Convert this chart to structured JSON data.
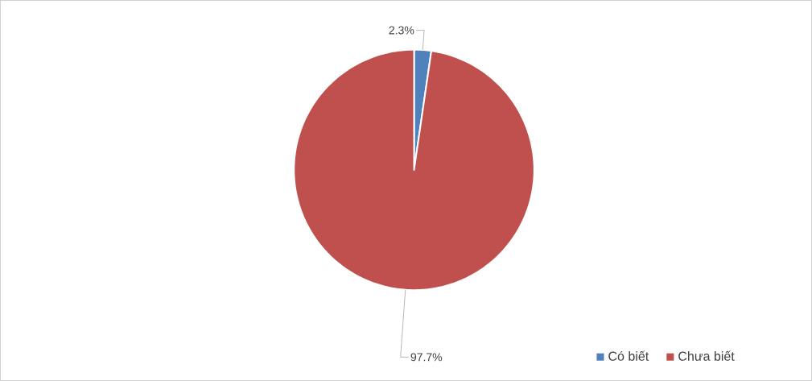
{
  "chart_data": {
    "type": "pie",
    "categories": [
      "Có biết",
      "Chưa biết"
    ],
    "values": [
      2.3,
      97.7
    ],
    "colors": [
      "#4f81bd",
      "#c0504d"
    ],
    "value_labels": [
      "2.3%",
      "97.7%"
    ],
    "legend": "bottom right"
  }
}
